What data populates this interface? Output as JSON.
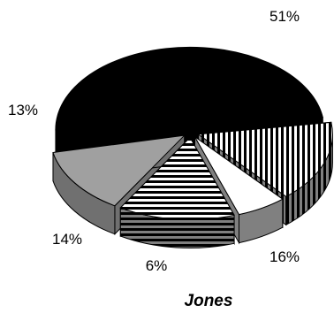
{
  "chart_data": {
    "type": "pie",
    "style": "3d-exploded",
    "title": "Jones",
    "slices": [
      {
        "value": 51,
        "label": "51%",
        "fill": "solid-black"
      },
      {
        "value": 16,
        "label": "16%",
        "fill": "vertical-stripes"
      },
      {
        "value": 6,
        "label": "6%",
        "fill": "white"
      },
      {
        "value": 14,
        "label": "14%",
        "fill": "horizontal-stripes"
      },
      {
        "value": 13,
        "label": "13%",
        "fill": "solid-gray"
      }
    ],
    "legend": "none",
    "grid": false
  }
}
